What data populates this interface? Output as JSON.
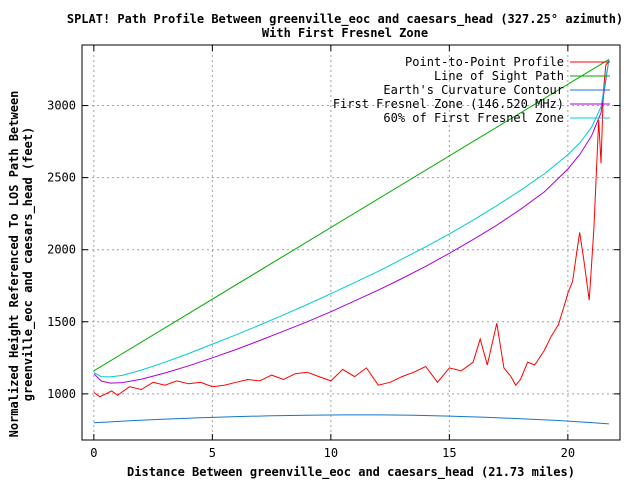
{
  "chart_data": {
    "type": "line",
    "title": "SPLAT! Path Profile Between greenville_eoc and caesars_head (327.25° azimuth)",
    "subtitle": "With First Fresnel Zone",
    "xlabel": "Distance Between greenville_eoc and caesars_head (21.73 miles)",
    "ylabel_line1": "Normalized Height Referenced To LOS Path Between",
    "ylabel_line2": "greenville_eoc and caesars_head (feet)",
    "xlim": [
      -0.5,
      22.2
    ],
    "ylim": [
      680,
      3420
    ],
    "x_ticks": [
      0,
      5,
      10,
      15,
      20
    ],
    "y_ticks": [
      1000,
      1500,
      2000,
      2500,
      3000
    ],
    "grid": true,
    "legend_position": "top-right",
    "series": [
      {
        "name": "Point-to-Point Profile",
        "color": "#ff0000",
        "x": [
          0.0,
          0.25,
          0.5,
          0.75,
          1.0,
          1.5,
          2.0,
          2.5,
          3.0,
          3.5,
          4.0,
          4.5,
          5.0,
          5.5,
          6.0,
          6.5,
          7.0,
          7.5,
          8.0,
          8.5,
          9.0,
          9.5,
          10.0,
          10.5,
          11.0,
          11.5,
          12.0,
          12.5,
          13.0,
          13.5,
          14.0,
          14.5,
          15.0,
          15.5,
          16.0,
          16.3,
          16.6,
          17.0,
          17.3,
          17.6,
          17.8,
          18.0,
          18.3,
          18.6,
          19.0,
          19.3,
          19.6,
          19.9,
          20.0,
          20.2,
          20.4,
          20.5,
          20.7,
          20.9,
          21.0,
          21.1,
          21.3,
          21.4,
          21.5,
          21.6,
          21.73
        ],
        "y": [
          1010,
          980,
          1000,
          1020,
          990,
          1050,
          1030,
          1080,
          1060,
          1090,
          1070,
          1080,
          1050,
          1060,
          1080,
          1100,
          1090,
          1130,
          1100,
          1140,
          1150,
          1120,
          1090,
          1170,
          1120,
          1180,
          1060,
          1080,
          1120,
          1150,
          1190,
          1080,
          1180,
          1160,
          1220,
          1380,
          1200,
          1490,
          1180,
          1120,
          1060,
          1100,
          1220,
          1200,
          1300,
          1400,
          1480,
          1640,
          1700,
          1780,
          2010,
          2120,
          1900,
          1650,
          1900,
          2150,
          2900,
          2600,
          3100,
          3280,
          3310
        ]
      },
      {
        "name": "Line of Sight Path",
        "color": "#00aa00",
        "x": [
          0,
          21.73
        ],
        "y": [
          1160,
          3320
        ]
      },
      {
        "name": "Earth's Curvature Contour",
        "color": "#1478c8",
        "x": [
          0,
          1.5,
          3,
          4.5,
          6,
          7.5,
          9,
          10.5,
          12,
          13.5,
          15,
          16.5,
          18,
          19.5,
          21,
          21.73
        ],
        "y": [
          800,
          813,
          825,
          834,
          842,
          848,
          852,
          854,
          854,
          851,
          846,
          838,
          828,
          816,
          801,
          792
        ]
      },
      {
        "name": "First Fresnel Zone (146.520 MHz)",
        "color": "#aa00dd",
        "x": [
          0,
          0.3,
          0.7,
          1.2,
          2,
          3,
          4,
          5,
          6,
          7,
          8,
          9,
          10,
          11,
          12,
          13,
          14,
          15,
          16,
          17,
          18,
          19,
          20,
          20.5,
          21,
          21.4,
          21.73
        ],
        "y": [
          1140,
          1090,
          1075,
          1078,
          1102,
          1145,
          1195,
          1250,
          1308,
          1370,
          1435,
          1500,
          1570,
          1645,
          1720,
          1800,
          1885,
          1975,
          2070,
          2170,
          2280,
          2400,
          2560,
          2660,
          2790,
          2950,
          3320
        ]
      },
      {
        "name": "60% of First Fresnel Zone",
        "color": "#00cccc",
        "x": [
          0,
          0.3,
          0.7,
          1.2,
          2,
          3,
          4,
          5,
          6,
          7,
          8,
          9,
          10,
          11,
          12,
          13,
          14,
          15,
          16,
          17,
          18,
          19,
          20,
          20.5,
          21,
          21.4,
          21.73
        ],
        "y": [
          1148,
          1120,
          1118,
          1128,
          1165,
          1220,
          1280,
          1345,
          1410,
          1478,
          1548,
          1620,
          1695,
          1772,
          1850,
          1935,
          2020,
          2110,
          2205,
          2305,
          2412,
          2525,
          2660,
          2740,
          2850,
          2990,
          3320
        ]
      }
    ]
  }
}
